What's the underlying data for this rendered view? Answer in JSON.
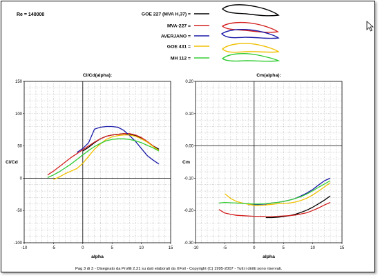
{
  "header": {
    "reynolds": "Re = 140000"
  },
  "legend": {
    "items": [
      {
        "label": "GOE 227 (MVA H,37) =",
        "color": "#000000"
      },
      {
        "label": "MVA-227 =",
        "color": "#d42020"
      },
      {
        "label": "AVERJANO =",
        "color": "#1a1aa8"
      },
      {
        "label": "GOE 431 =",
        "color": "#f0c000"
      },
      {
        "label": "MH 112 =",
        "color": "#33cc33"
      }
    ]
  },
  "footer": {
    "text": "Pag 3 di 3  -    Disegnato da Profili 2.21  su dati elaborati da XFoil - Copyright (C) 1995-2007 - Tutti i diritti sono riservati."
  },
  "chart_data": [
    {
      "type": "line",
      "title": "Cl/Cd(alpha):",
      "xlabel": "alpha",
      "ylabel": "Cl/Cd",
      "xlim": [
        -10,
        15
      ],
      "ylim": [
        -100,
        150
      ],
      "xticks": [
        "-10",
        "-5",
        "0",
        "5",
        "10",
        "15"
      ],
      "yticks": [
        "-100",
        "-50",
        "0",
        "50",
        "100",
        "150"
      ],
      "grid": true,
      "series": [
        {
          "name": "GOE 227 (MVA H,37)",
          "color": "#000000",
          "x": [
            0,
            1,
            2,
            3,
            4,
            5,
            6,
            7,
            8,
            9,
            10,
            11,
            12,
            13
          ],
          "y": [
            42,
            48,
            55,
            61,
            65,
            67,
            68,
            69,
            68,
            66,
            62,
            56,
            50,
            45
          ]
        },
        {
          "name": "MVA-227",
          "color": "#d42020",
          "x": [
            -6,
            -5,
            -4,
            -3,
            -2,
            -1,
            0,
            1,
            2,
            3,
            4,
            5,
            6,
            7,
            8,
            9,
            10,
            11,
            12,
            13
          ],
          "y": [
            5,
            11,
            18,
            25,
            32,
            38,
            44,
            50,
            56,
            61,
            65,
            67,
            68,
            69,
            69,
            67,
            63,
            57,
            50,
            43
          ]
        },
        {
          "name": "AVERJANO",
          "color": "#1a1aa8",
          "x": [
            -1,
            0,
            1,
            2,
            3,
            4,
            5,
            6,
            7,
            8,
            9,
            10,
            11,
            12,
            13
          ],
          "y": [
            40,
            46,
            55,
            76,
            79,
            80,
            80,
            79,
            74,
            66,
            57,
            46,
            35,
            28,
            22
          ]
        },
        {
          "name": "GOE 431",
          "color": "#f0c000",
          "x": [
            -5,
            -4,
            -3,
            -2,
            -1,
            0,
            1,
            2,
            3,
            4,
            5,
            6,
            7,
            8,
            9,
            10,
            11,
            12,
            13
          ],
          "y": [
            -2,
            2,
            7,
            11,
            15,
            23,
            34,
            45,
            53,
            60,
            64,
            66,
            67,
            67,
            65,
            61,
            56,
            49,
            43
          ]
        },
        {
          "name": "MH 112",
          "color": "#33cc33",
          "x": [
            -6,
            -5,
            -4,
            -3,
            -2,
            -1,
            0,
            1,
            2,
            3,
            4,
            5,
            6,
            7,
            8,
            9,
            10,
            11,
            12,
            13
          ],
          "y": [
            1,
            5,
            10,
            16,
            22,
            29,
            36,
            43,
            49,
            54,
            58,
            60,
            61,
            61,
            60,
            58,
            55,
            51,
            47,
            42
          ]
        }
      ]
    },
    {
      "type": "line",
      "title": "Cm(alpha):",
      "xlabel": "alpha",
      "ylabel": "Cm",
      "xlim": [
        -10,
        15
      ],
      "ylim": [
        -0.3,
        0.2
      ],
      "xticks": [
        "-10",
        "-5",
        "0",
        "5",
        "10",
        "15"
      ],
      "yticks": [
        "-0.30",
        "-0.20",
        "-0.10",
        "0.00",
        "0.10",
        "0.20"
      ],
      "grid": true,
      "series": [
        {
          "name": "GOE 227 (MVA H,37)",
          "color": "#000000",
          "x": [
            2,
            3,
            4,
            5,
            6,
            7,
            8,
            9,
            10,
            11,
            12,
            13
          ],
          "y": [
            -0.222,
            -0.222,
            -0.221,
            -0.219,
            -0.216,
            -0.212,
            -0.206,
            -0.199,
            -0.19,
            -0.179,
            -0.168,
            -0.155
          ]
        },
        {
          "name": "MVA-227",
          "color": "#d42020",
          "x": [
            -6,
            -5,
            -4,
            -3,
            -2,
            -1,
            0,
            1,
            2,
            3,
            4,
            5,
            6,
            7,
            8,
            9,
            10,
            11,
            12,
            13
          ],
          "y": [
            -0.197,
            -0.208,
            -0.212,
            -0.215,
            -0.216,
            -0.217,
            -0.218,
            -0.218,
            -0.219,
            -0.219,
            -0.218,
            -0.217,
            -0.216,
            -0.214,
            -0.211,
            -0.207,
            -0.2,
            -0.192,
            -0.183,
            -0.175
          ]
        },
        {
          "name": "AVERJANO",
          "color": "#1a1aa8",
          "x": [
            -1,
            0,
            1,
            2,
            3,
            4,
            5,
            6,
            7,
            8,
            9,
            10,
            11,
            12,
            13
          ],
          "y": [
            -0.182,
            -0.182,
            -0.181,
            -0.18,
            -0.177,
            -0.175,
            -0.172,
            -0.168,
            -0.163,
            -0.155,
            -0.146,
            -0.135,
            -0.121,
            -0.108,
            -0.1
          ]
        },
        {
          "name": "GOE 431",
          "color": "#f0c000",
          "x": [
            -5,
            -4,
            -3,
            -2,
            -1,
            0,
            1,
            2,
            3,
            4,
            5,
            6,
            7,
            8,
            9,
            10,
            11,
            12,
            13
          ],
          "y": [
            -0.148,
            -0.163,
            -0.172,
            -0.177,
            -0.181,
            -0.184,
            -0.185,
            -0.183,
            -0.181,
            -0.179,
            -0.178,
            -0.177,
            -0.174,
            -0.169,
            -0.162,
            -0.152,
            -0.14,
            -0.127,
            -0.114
          ]
        },
        {
          "name": "MH 112",
          "color": "#33cc33",
          "x": [
            -6,
            -5,
            -4,
            -3,
            -2,
            -1,
            0,
            1,
            2,
            3,
            4,
            5,
            6,
            7,
            8,
            9,
            10,
            11,
            12,
            13
          ],
          "y": [
            -0.177,
            -0.175,
            -0.176,
            -0.177,
            -0.178,
            -0.179,
            -0.18,
            -0.18,
            -0.179,
            -0.177,
            -0.175,
            -0.172,
            -0.168,
            -0.163,
            -0.157,
            -0.149,
            -0.139,
            -0.128,
            -0.118,
            -0.108
          ]
        }
      ]
    }
  ]
}
